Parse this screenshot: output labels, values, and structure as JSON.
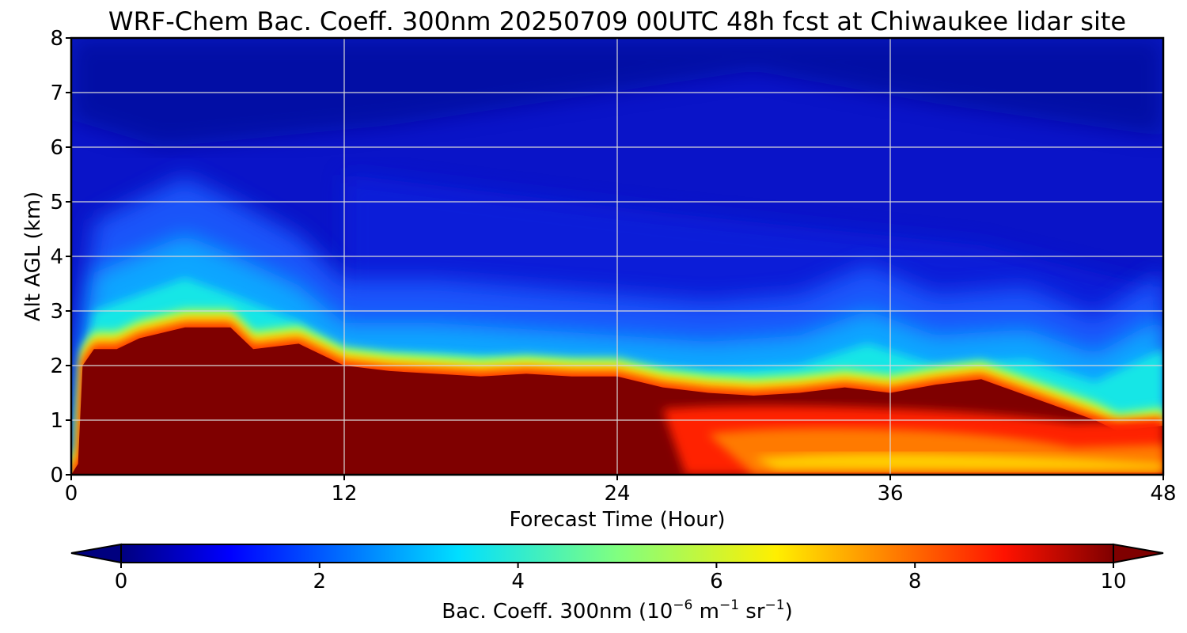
{
  "chart_data": {
    "type": "heatmap",
    "title": "WRF-Chem Bac. Coeff. 300nm  20250709 00UTC 48h fcst at Chiwaukee lidar site",
    "xlabel": "Forecast Time (Hour)",
    "ylabel": "Alt AGL (km)",
    "xlim": [
      0,
      48
    ],
    "ylim": [
      0,
      8
    ],
    "x_ticks": [
      "0",
      "12",
      "24",
      "36",
      "48"
    ],
    "y_ticks": [
      "0",
      "1",
      "2",
      "3",
      "4",
      "5",
      "6",
      "7",
      "8"
    ],
    "grid": true,
    "colormap": "jet",
    "colorbar": {
      "label_prefix": "Bac. Coeff. 300nm  (10",
      "exp1": "−6",
      "mid": " m",
      "exp2": "−1",
      "mid2": " sr",
      "exp3": "−1",
      "suffix": ")",
      "range": [
        0,
        10
      ],
      "ticks": [
        "0",
        "2",
        "4",
        "6",
        "8",
        "10"
      ],
      "extend": "both",
      "orientation": "horizontal"
    },
    "features": {
      "saturated_layer_top_km": [
        [
          0,
          0
        ],
        [
          0.3,
          0.2
        ],
        [
          0.5,
          2.0
        ],
        [
          1,
          2.3
        ],
        [
          2,
          2.3
        ],
        [
          3,
          2.5
        ],
        [
          5,
          2.7
        ],
        [
          7,
          2.7
        ],
        [
          8,
          2.3
        ],
        [
          10,
          2.4
        ],
        [
          11,
          2.2
        ],
        [
          12,
          2.0
        ],
        [
          14,
          1.9
        ],
        [
          16,
          1.85
        ],
        [
          18,
          1.8
        ],
        [
          20,
          1.85
        ],
        [
          22,
          1.8
        ],
        [
          24,
          1.8
        ],
        [
          26,
          1.6
        ],
        [
          28,
          1.5
        ],
        [
          30,
          1.45
        ],
        [
          32,
          1.5
        ],
        [
          34,
          1.6
        ],
        [
          36,
          1.5
        ],
        [
          38,
          1.65
        ],
        [
          40,
          1.75
        ],
        [
          41,
          1.6
        ],
        [
          43,
          1.3
        ],
        [
          45,
          1.0
        ],
        [
          46,
          0.8
        ],
        [
          48,
          0.9
        ]
      ],
      "boundary_layer_plume_top_km": [
        [
          0.2,
          1.0
        ],
        [
          1,
          3.0
        ],
        [
          3,
          3.3
        ],
        [
          5,
          3.6
        ],
        [
          7,
          3.3
        ],
        [
          10,
          2.8
        ],
        [
          12,
          2.2
        ],
        [
          16,
          2.2
        ],
        [
          20,
          2.1
        ],
        [
          24,
          2.0
        ],
        [
          28,
          1.9
        ],
        [
          32,
          2.0
        ],
        [
          35,
          2.4
        ],
        [
          38,
          2.0
        ],
        [
          42,
          2.1
        ],
        [
          45,
          1.7
        ],
        [
          48,
          2.3
        ]
      ],
      "near_surface_high_region_start_h": 26,
      "near_surface_minimum_km": 0.3
    }
  }
}
